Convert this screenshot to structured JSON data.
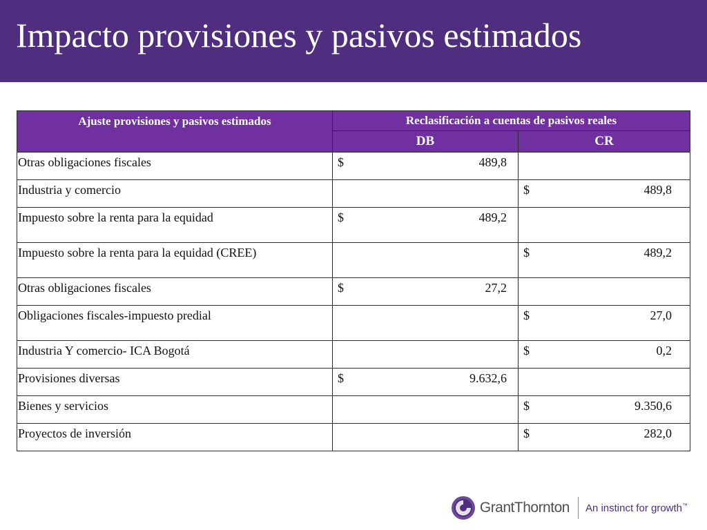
{
  "slide": {
    "title": "Impacto provisiones y pasivos estimados"
  },
  "table": {
    "header_left": "Ajuste provisiones y pasivos estimados",
    "header_group": "Reclasificación a cuentas de pasivos reales",
    "header_db": "DB",
    "header_cr": "CR",
    "rows": [
      {
        "label": "Otras obligaciones fiscales",
        "db_currency": "$",
        "db": "489,8",
        "cr_currency": "",
        "cr": ""
      },
      {
        "label": "Industria y comercio",
        "db_currency": "",
        "db": "",
        "cr_currency": "$",
        "cr": "489,8"
      },
      {
        "label": "Impuesto sobre la renta para la equidad",
        "db_currency": "$",
        "db": "489,2",
        "cr_currency": "",
        "cr": ""
      },
      {
        "label": "Impuesto sobre la renta para la equidad (CREE)",
        "db_currency": "",
        "db": "",
        "cr_currency": "$",
        "cr": "489,2"
      },
      {
        "label": "Otras obligaciones fiscales",
        "db_currency": "$",
        "db": "27,2",
        "cr_currency": "",
        "cr": ""
      },
      {
        "label": "Obligaciones fiscales-impuesto predial",
        "db_currency": "",
        "db": "",
        "cr_currency": "$",
        "cr": "27,0"
      },
      {
        "label": "Industria Y comercio- ICA Bogotá",
        "db_currency": "",
        "db": "",
        "cr_currency": "$",
        "cr": "0,2"
      },
      {
        "label": "Provisiones diversas",
        "db_currency": "$",
        "db": "9.632,6",
        "cr_currency": "",
        "cr": ""
      },
      {
        "label": "Bienes y servicios",
        "db_currency": "",
        "db": "",
        "cr_currency": "$",
        "cr": "9.350,6"
      },
      {
        "label": "Proyectos de inversión",
        "db_currency": "",
        "db": "",
        "cr_currency": "$",
        "cr": "282,0"
      }
    ]
  },
  "footer": {
    "logo_icon": "grant-thornton-logo-icon",
    "brand_name": "GrantThornton",
    "tagline": "An instinct for growth",
    "tagline_mark": "™"
  },
  "colors": {
    "header_bg": "#4f2d7f",
    "table_header_bg": "#7030a0",
    "tagline": "#4f2d7f"
  }
}
